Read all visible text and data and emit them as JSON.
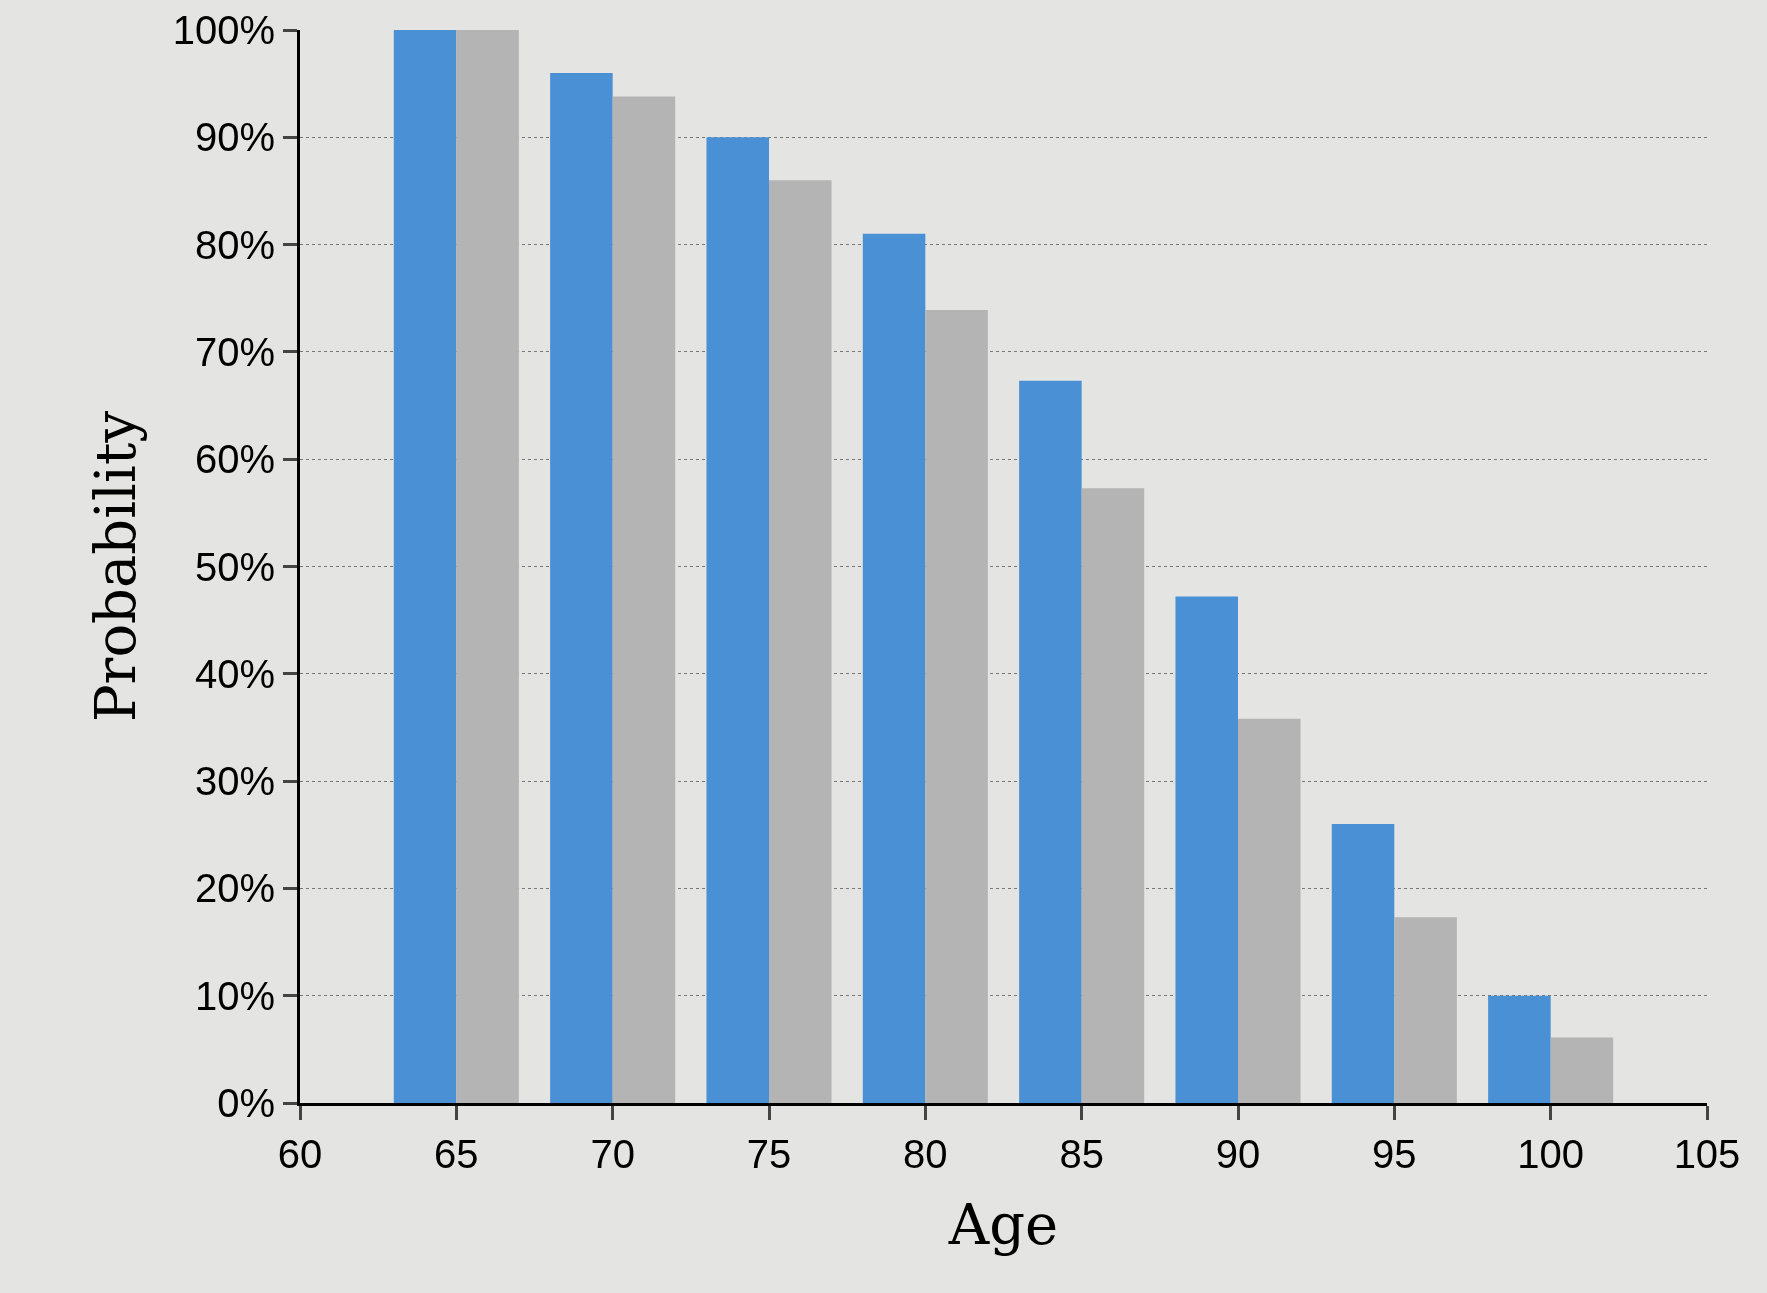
{
  "chart_data": {
    "type": "bar",
    "xlabel": "Age",
    "ylabel": "Probability",
    "x": [
      65,
      70,
      75,
      80,
      85,
      90,
      95,
      100
    ],
    "series": [
      {
        "color": "#4a90d4",
        "values": [
          100,
          96,
          90,
          81,
          67.3,
          47.2,
          26,
          10
        ]
      },
      {
        "color": "#b4b4b4",
        "values": [
          100,
          93.8,
          86,
          73.9,
          57.3,
          35.8,
          17.3,
          6.1
        ]
      }
    ],
    "xlim": [
      60,
      105
    ],
    "xticks": [
      60,
      65,
      70,
      75,
      80,
      85,
      90,
      95,
      100,
      105
    ],
    "ylim": [
      0,
      100
    ],
    "yticks": [
      {
        "value": 0,
        "label": "0%"
      },
      {
        "value": 10,
        "label": "10%"
      },
      {
        "value": 20,
        "label": "20%"
      },
      {
        "value": 30,
        "label": "30%"
      },
      {
        "value": 40,
        "label": "40%"
      },
      {
        "value": 50,
        "label": "50%"
      },
      {
        "value": 60,
        "label": "60%"
      },
      {
        "value": 70,
        "label": "70%"
      },
      {
        "value": 80,
        "label": "80%"
      },
      {
        "value": 90,
        "label": "90%"
      },
      {
        "value": 100,
        "label": "100%"
      }
    ],
    "grid": "y"
  }
}
